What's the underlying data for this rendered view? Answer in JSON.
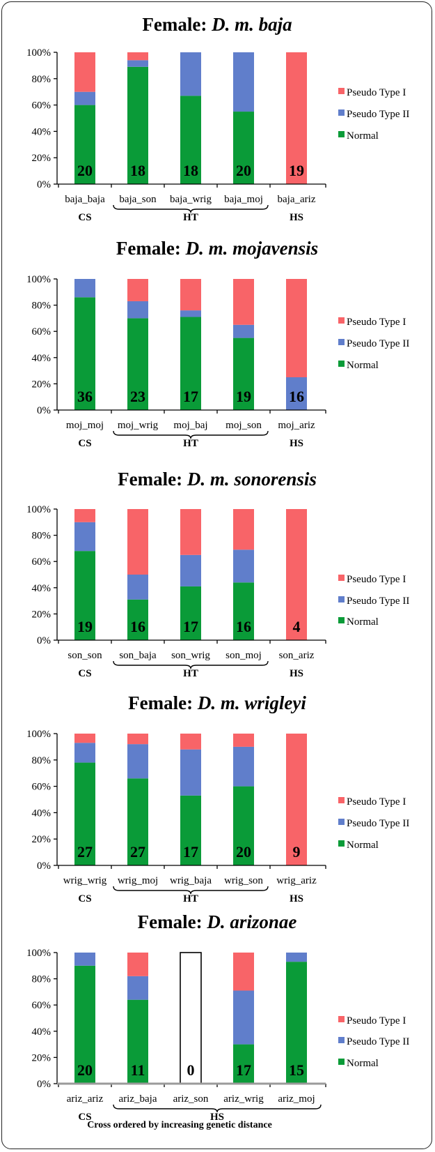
{
  "colors": {
    "pseudo_type_1": "#f86468",
    "pseudo_type_2": "#607ecb",
    "normal": "#0a9b38",
    "axis": "#000000",
    "empty_bar": "#ffffff"
  },
  "legend_labels": [
    "Pseudo Type I",
    "Pseudo Type II",
    "Normal"
  ],
  "footer": "Cross ordered by increasing genetic distance",
  "chart_data": [
    {
      "type": "bar",
      "stacked": true,
      "title_prefix": "Female: ",
      "title_species": "D. m. baja",
      "categories": [
        "baja_baja",
        "baja_son",
        "baja_wrig",
        "baja_moj",
        "baja_ariz"
      ],
      "counts": [
        "20",
        "18",
        "18",
        "20",
        "19"
      ],
      "ylim": [
        0,
        100
      ],
      "yticks": [
        "0%",
        "20%",
        "40%",
        "60%",
        "80%",
        "100%"
      ],
      "groups": [
        {
          "label": "CS",
          "from": 0,
          "to": 0
        },
        {
          "label": "HT",
          "from": 1,
          "to": 3
        },
        {
          "label": "HS",
          "from": 4,
          "to": 4
        }
      ],
      "series": [
        {
          "name": "Normal",
          "values": [
            60,
            89,
            67,
            55,
            0
          ]
        },
        {
          "name": "Pseudo Type II",
          "values": [
            10,
            5,
            33,
            45,
            0
          ]
        },
        {
          "name": "Pseudo Type I",
          "values": [
            30,
            6,
            0,
            0,
            100
          ]
        }
      ]
    },
    {
      "type": "bar",
      "stacked": true,
      "title_prefix": "Female: ",
      "title_species": "D. m. mojavensis",
      "categories": [
        "moj_moj",
        "moj_wrig",
        "moj_baj",
        "moj_son",
        "moj_ariz"
      ],
      "counts": [
        "36",
        "23",
        "17",
        "19",
        "16"
      ],
      "ylim": [
        0,
        100
      ],
      "yticks": [
        "0%",
        "20%",
        "40%",
        "60%",
        "80%",
        "100%"
      ],
      "groups": [
        {
          "label": "CS",
          "from": 0,
          "to": 0
        },
        {
          "label": "HT",
          "from": 1,
          "to": 3
        },
        {
          "label": "HS",
          "from": 4,
          "to": 4
        }
      ],
      "series": [
        {
          "name": "Normal",
          "values": [
            86,
            70,
            71,
            55,
            0
          ]
        },
        {
          "name": "Pseudo Type II",
          "values": [
            14,
            13,
            5,
            10,
            25
          ]
        },
        {
          "name": "Pseudo Type I",
          "values": [
            0,
            17,
            24,
            35,
            75
          ]
        }
      ]
    },
    {
      "type": "bar",
      "stacked": true,
      "title_prefix": "Female: ",
      "title_species": "D. m. sonorensis",
      "categories": [
        "son_son",
        "son_baja",
        "son_wrig",
        "son_moj",
        "son_ariz"
      ],
      "counts": [
        "19",
        "16",
        "17",
        "16",
        "4"
      ],
      "ylim": [
        0,
        100
      ],
      "yticks": [
        "0%",
        "20%",
        "40%",
        "60%",
        "80%",
        "100%"
      ],
      "groups": [
        {
          "label": "CS",
          "from": 0,
          "to": 0
        },
        {
          "label": "HT",
          "from": 1,
          "to": 3
        },
        {
          "label": "HS",
          "from": 4,
          "to": 4
        }
      ],
      "series": [
        {
          "name": "Normal",
          "values": [
            68,
            31,
            41,
            44,
            0
          ]
        },
        {
          "name": "Pseudo Type II",
          "values": [
            22,
            19,
            24,
            25,
            0
          ]
        },
        {
          "name": "Pseudo Type I",
          "values": [
            10,
            50,
            35,
            31,
            100
          ]
        }
      ]
    },
    {
      "type": "bar",
      "stacked": true,
      "title_prefix": "Female: ",
      "title_species": "D. m. wrigleyi",
      "categories": [
        "wrig_wrig",
        "wrig_moj",
        "wrig_baja",
        "wrig_son",
        "wrig_ariz"
      ],
      "counts": [
        "27",
        "27",
        "17",
        "20",
        "9"
      ],
      "ylim": [
        0,
        100
      ],
      "yticks": [
        "0%",
        "20%",
        "40%",
        "60%",
        "80%",
        "100%"
      ],
      "groups": [
        {
          "label": "CS",
          "from": 0,
          "to": 0
        },
        {
          "label": "HT",
          "from": 1,
          "to": 3
        },
        {
          "label": "HS",
          "from": 4,
          "to": 4
        }
      ],
      "series": [
        {
          "name": "Normal",
          "values": [
            78,
            66,
            53,
            60,
            0
          ]
        },
        {
          "name": "Pseudo Type II",
          "values": [
            15,
            26,
            35,
            30,
            0
          ]
        },
        {
          "name": "Pseudo Type I",
          "values": [
            7,
            8,
            12,
            10,
            100
          ]
        }
      ]
    },
    {
      "type": "bar",
      "stacked": true,
      "title_prefix": "Female: ",
      "title_species": "D. arizonae",
      "categories": [
        "ariz_ariz",
        "ariz_baja",
        "ariz_son",
        "ariz_wrig",
        "ariz_moj"
      ],
      "counts": [
        "20",
        "11",
        "0",
        "17",
        "15"
      ],
      "ylim": [
        0,
        100
      ],
      "yticks": [
        "0%",
        "20%",
        "40%",
        "60%",
        "80%",
        "100%"
      ],
      "groups": [
        {
          "label": "CS",
          "from": 0,
          "to": 0
        },
        {
          "label": "HS",
          "from": 1,
          "to": 4
        }
      ],
      "empty_categories": [
        2
      ],
      "series": [
        {
          "name": "Normal",
          "values": [
            90,
            64,
            0,
            30,
            93
          ]
        },
        {
          "name": "Pseudo Type II",
          "values": [
            10,
            18,
            0,
            41,
            7
          ]
        },
        {
          "name": "Pseudo Type I",
          "values": [
            0,
            18,
            0,
            29,
            0
          ]
        }
      ]
    }
  ]
}
